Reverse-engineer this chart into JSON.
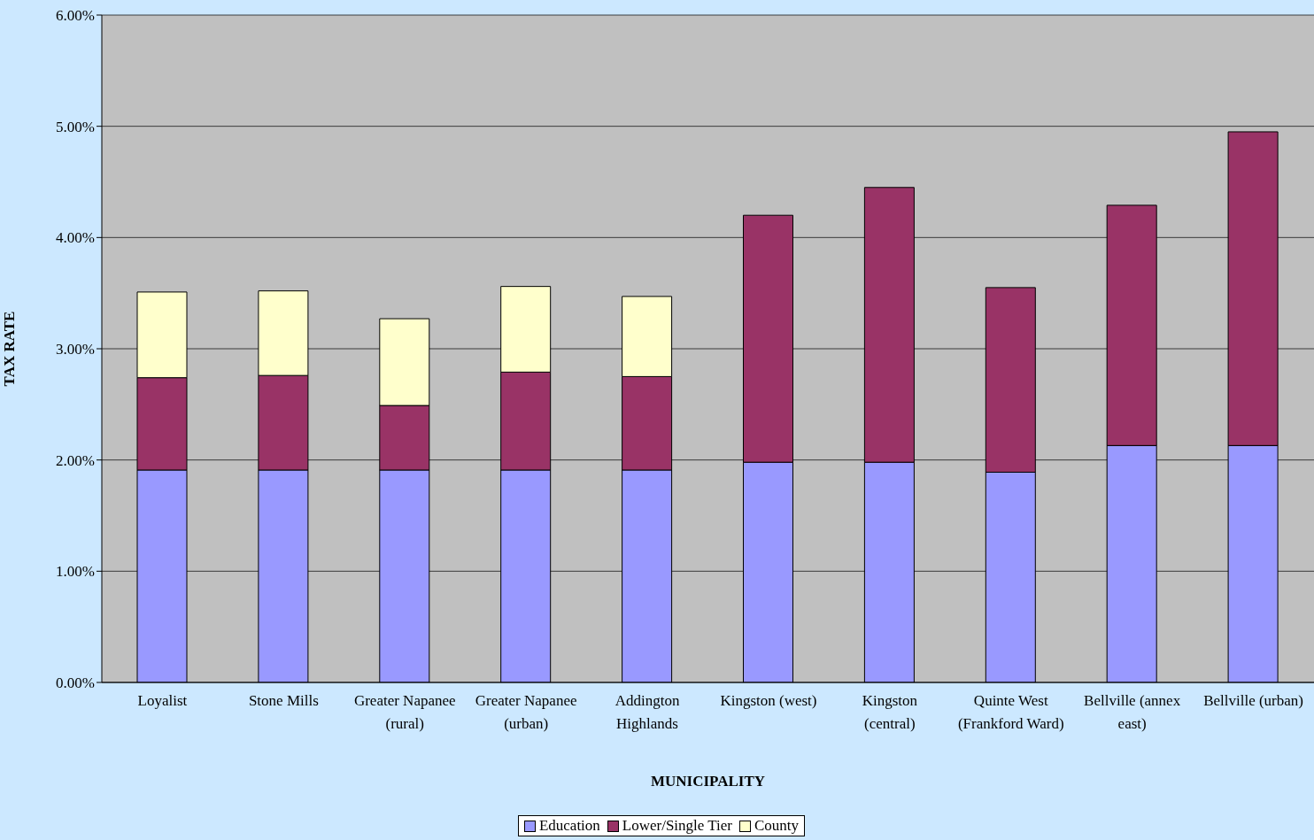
{
  "chart_data": {
    "type": "bar",
    "stacked": true,
    "xlabel": "MUNICIPALITY",
    "ylabel": "TAX RATE",
    "categories": [
      "Loyalist",
      "Stone Mills",
      "Greater Napanee (rural)",
      "Greater Napanee (urban)",
      "Addington Highlands",
      "Kingston (west)",
      "Kingston (central)",
      "Quinte West (Frankford Ward)",
      "Bellville (annex east)",
      "Bellville (urban)"
    ],
    "series": [
      {
        "name": "Education",
        "color": "#9999ff",
        "values": [
          1.91,
          1.91,
          1.91,
          1.91,
          1.91,
          1.98,
          1.98,
          1.89,
          2.13,
          2.13
        ]
      },
      {
        "name": "Lower/Single Tier",
        "color": "#993366",
        "values": [
          0.83,
          0.85,
          0.58,
          0.88,
          0.84,
          2.22,
          2.47,
          1.66,
          2.16,
          2.82
        ]
      },
      {
        "name": "County",
        "color": "#ffffcc",
        "values": [
          0.77,
          0.76,
          0.78,
          0.77,
          0.72,
          null,
          null,
          null,
          null,
          null
        ]
      }
    ],
    "ylim": [
      0,
      6
    ],
    "yticks": [
      {
        "value": 0,
        "label": "0.00%"
      },
      {
        "value": 1,
        "label": "1.00%"
      },
      {
        "value": 2,
        "label": "2.00%"
      },
      {
        "value": 3,
        "label": "3.00%"
      },
      {
        "value": 4,
        "label": "4.00%"
      },
      {
        "value": 5,
        "label": "5.00%"
      },
      {
        "value": 6,
        "label": "6.00%"
      }
    ],
    "grid": "y",
    "legend": "bottom"
  }
}
